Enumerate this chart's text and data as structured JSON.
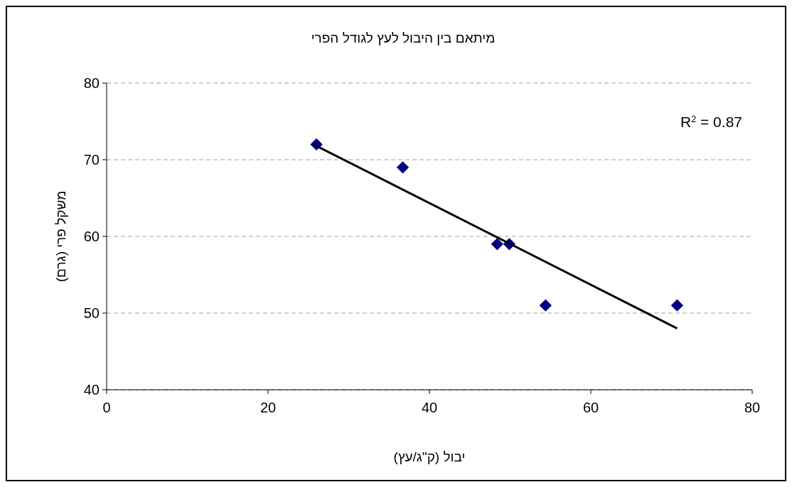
{
  "chart_data": {
    "type": "scatter",
    "title": "מיתאם בין היבול לעץ לגודל הפרי",
    "xlabel": "יבול (ק\"ג/עץ)",
    "ylabel": "משקל פרי (גרם)",
    "x": [
      26,
      36.7,
      48.4,
      49.9,
      54.4,
      70.7
    ],
    "series": [
      {
        "color": "#000080",
        "marker": "diamond",
        "values": [
          72,
          69,
          59,
          59,
          51,
          51
        ]
      },
      {
        "type": "line",
        "color": "#000000",
        "x": [
          26,
          70.7
        ],
        "values": [
          71.8,
          48
        ],
        "marker": "none",
        "line_style": "solid"
      }
    ],
    "xlim": [
      0,
      80
    ],
    "xticks": [
      0,
      20,
      40,
      60,
      80
    ],
    "ylim": [
      40,
      80
    ],
    "yticks": [
      40,
      50,
      60,
      70,
      80
    ],
    "grid": "y",
    "annotations": [
      "R$^{2}$ = 0.87"
    ]
  }
}
